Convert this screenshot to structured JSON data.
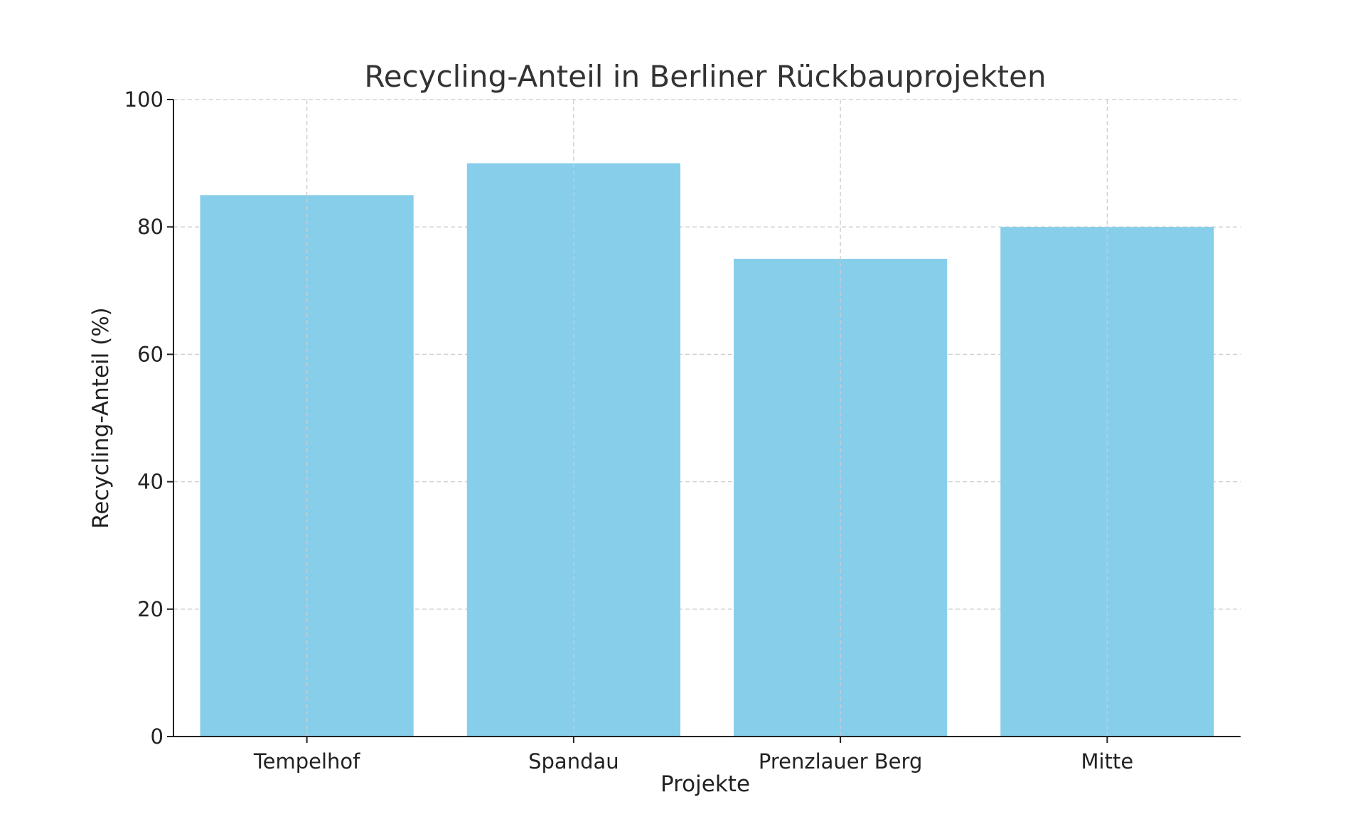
{
  "chart_data": {
    "type": "bar",
    "title": "Recycling-Anteil in Berliner Rückbauprojekten",
    "xlabel": "Projekte",
    "ylabel": "Recycling-Anteil (%)",
    "categories": [
      "Tempelhof",
      "Spandau",
      "Prenzlauer Berg",
      "Mitte"
    ],
    "values": [
      85,
      90,
      75,
      80
    ],
    "ylim": [
      0,
      100
    ],
    "yticks": [
      0,
      20,
      40,
      60,
      80,
      100
    ],
    "grid": true,
    "bar_color": "#87CEEB"
  }
}
